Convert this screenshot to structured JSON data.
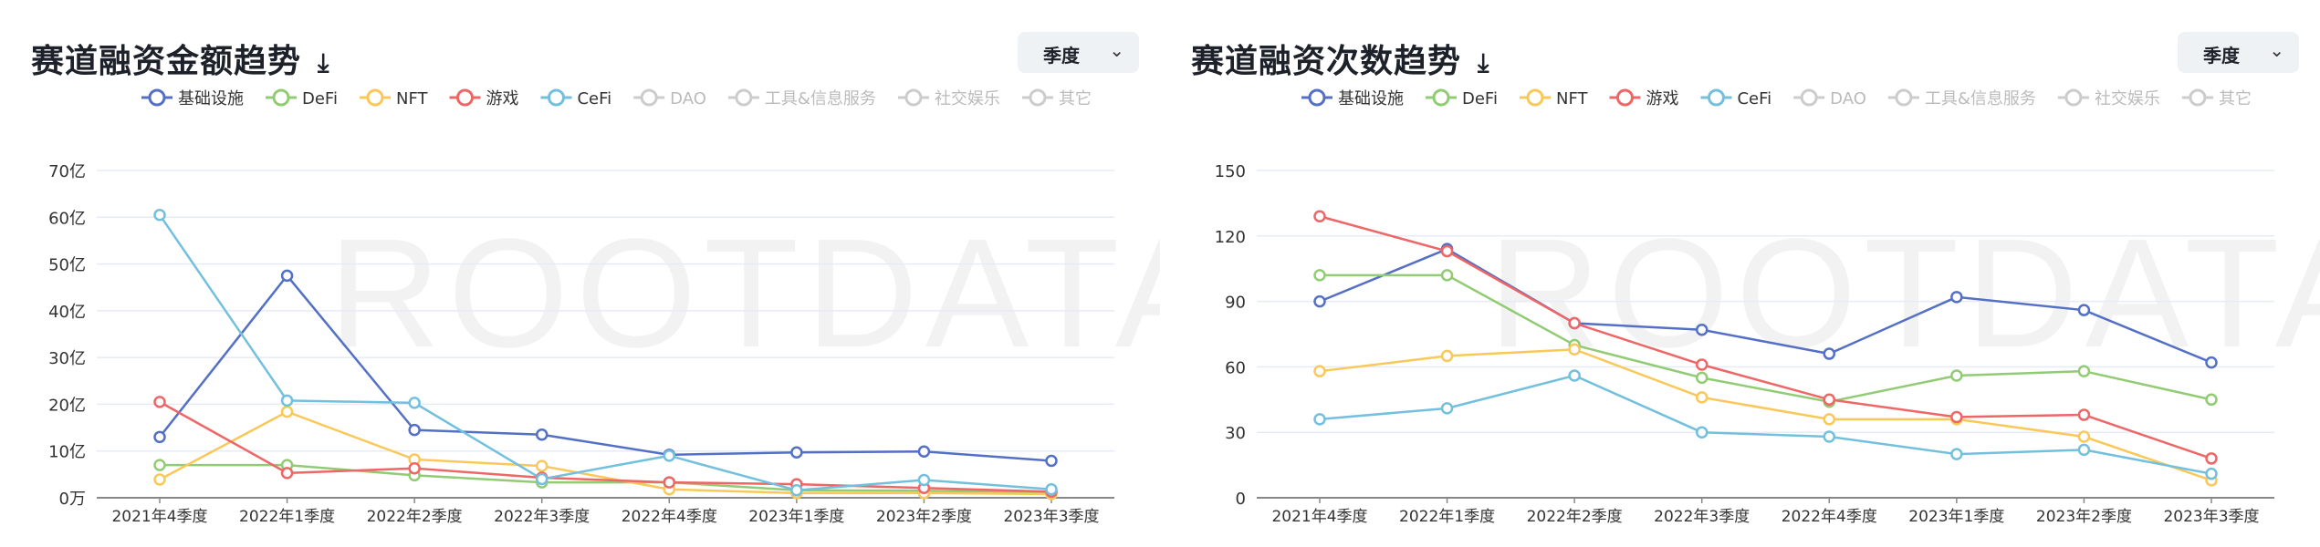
{
  "colors": {
    "基础设施": "#5470c6",
    "DeFi": "#91cc75",
    "NFT": "#fac858",
    "游戏": "#ee6666",
    "CeFi": "#73c0de",
    "disabled": "#cccccc"
  },
  "legend": [
    {
      "name": "基础设施",
      "active": true
    },
    {
      "name": "DeFi",
      "active": true
    },
    {
      "name": "NFT",
      "active": true
    },
    {
      "name": "游戏",
      "active": true
    },
    {
      "name": "CeFi",
      "active": true
    },
    {
      "name": "DAO",
      "active": false
    },
    {
      "name": "工具&信息服务",
      "active": false
    },
    {
      "name": "社交娱乐",
      "active": false
    },
    {
      "name": "其它",
      "active": false
    }
  ],
  "watermark": "ROOTDATA",
  "panels": [
    {
      "title": "赛道融资金额趋势",
      "period": "季度",
      "download_icon": "download-icon"
    },
    {
      "title": "赛道融资次数趋势",
      "period": "季度",
      "download_icon": "download-icon"
    }
  ],
  "chart_data": [
    {
      "type": "line",
      "title": "赛道融资金额趋势",
      "legend_position": "top",
      "grid": true,
      "categories": [
        "2021年4季度",
        "2022年1季度",
        "2022年2季度",
        "2022年3季度",
        "2022年4季度",
        "2023年1季度",
        "2023年2季度",
        "2023年3季度"
      ],
      "ylim": [
        0,
        70
      ],
      "yunit": "亿",
      "yticks": [
        "0万",
        "10亿",
        "20亿",
        "30亿",
        "40亿",
        "50亿",
        "60亿",
        "70亿"
      ],
      "series": [
        {
          "name": "基础设施",
          "values": [
            13,
            47.5,
            14.5,
            13.5,
            9.2,
            9.7,
            9.9,
            7.9
          ]
        },
        {
          "name": "DeFi",
          "values": [
            7,
            7,
            4.8,
            3.3,
            3.3,
            1.6,
            1.5,
            1.2
          ]
        },
        {
          "name": "NFT",
          "values": [
            3.9,
            18.4,
            8.2,
            6.8,
            1.8,
            1.0,
            1.0,
            0.8
          ]
        },
        {
          "name": "游戏",
          "values": [
            20.5,
            5.3,
            6.3,
            4.3,
            3.3,
            2.9,
            2.1,
            1.3
          ]
        },
        {
          "name": "CeFi",
          "values": [
            60.5,
            20.8,
            20.3,
            4.0,
            9.0,
            1.6,
            3.8,
            1.8
          ]
        }
      ]
    },
    {
      "type": "line",
      "title": "赛道融资次数趋势",
      "legend_position": "top",
      "grid": true,
      "categories": [
        "2021年4季度",
        "2022年1季度",
        "2022年2季度",
        "2022年3季度",
        "2022年4季度",
        "2023年1季度",
        "2023年2季度",
        "2023年3季度"
      ],
      "ylim": [
        0,
        150
      ],
      "yticks": [
        "0",
        "30",
        "60",
        "90",
        "120",
        "150"
      ],
      "series": [
        {
          "name": "基础设施",
          "values": [
            90,
            114,
            80,
            77,
            66,
            92,
            86,
            62
          ]
        },
        {
          "name": "DeFi",
          "values": [
            102,
            102,
            70,
            55,
            44,
            56,
            58,
            45
          ]
        },
        {
          "name": "NFT",
          "values": [
            58,
            65,
            68,
            46,
            36,
            36,
            28,
            8
          ]
        },
        {
          "name": "游戏",
          "values": [
            129,
            113,
            80,
            61,
            45,
            37,
            38,
            18
          ]
        },
        {
          "name": "CeFi",
          "values": [
            36,
            41,
            56,
            30,
            28,
            20,
            22,
            11
          ]
        }
      ]
    }
  ]
}
